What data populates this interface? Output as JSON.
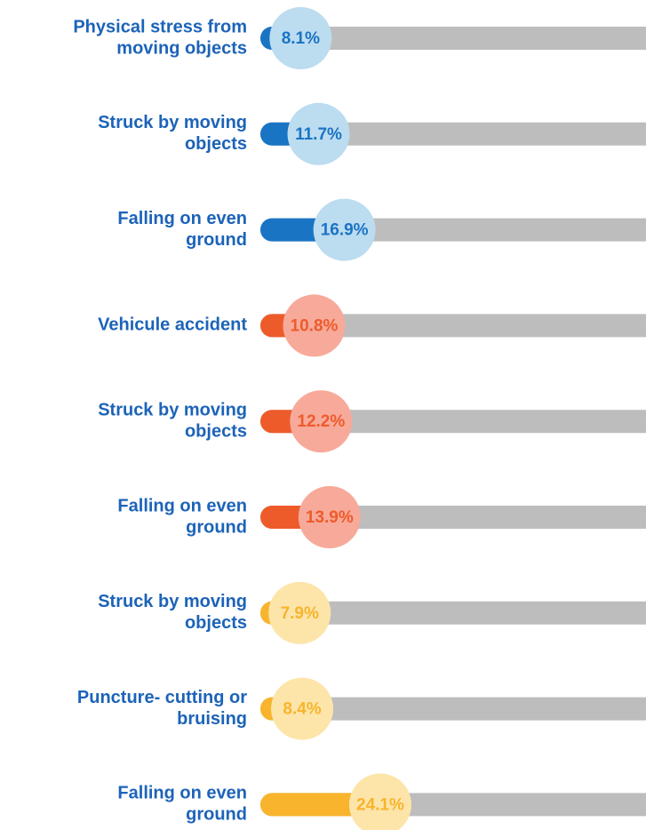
{
  "chart_data": {
    "type": "bar",
    "orientation": "horizontal",
    "categories": [
      [
        "Physical stress from",
        "moving objects"
      ],
      [
        "Struck by moving",
        "objects"
      ],
      [
        "Falling on even",
        "ground"
      ],
      [
        "Vehicule accident"
      ],
      [
        "Struck by moving",
        "objects"
      ],
      [
        "Falling on even",
        "ground"
      ],
      [
        "Struck by moving",
        "objects"
      ],
      [
        "Puncture- cutting or",
        "bruising"
      ],
      [
        "Falling on even",
        "ground"
      ]
    ],
    "values": [
      8.1,
      11.7,
      16.9,
      10.8,
      12.2,
      13.9,
      7.9,
      8.4,
      24.1
    ],
    "value_labels": [
      "8.1%",
      "11.7%",
      "16.9%",
      "10.8%",
      "12.2%",
      "13.9%",
      "7.9%",
      "8.4%",
      "24.1%"
    ],
    "colors": [
      "#1a74c4",
      "#1a74c4",
      "#1a74c4",
      "#ee5b2b",
      "#ee5b2b",
      "#ee5b2b",
      "#f8b42c",
      "#f8b42c",
      "#f8b42c"
    ],
    "circle_colors": [
      "#bcdcf0",
      "#bcdcf0",
      "#bcdcf0",
      "#f7aa9a",
      "#f7aa9a",
      "#f7aa9a",
      "#fde5a9",
      "#fde5a9",
      "#fde5a9"
    ],
    "track_color": "#bdbdbd"
  }
}
